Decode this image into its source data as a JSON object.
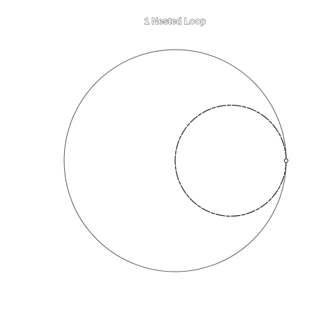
{
  "title": "1 Nested Loop",
  "colors": {
    "background": "#ffffff",
    "outer_loop": "#555555",
    "inner_loop": "#222222"
  },
  "shapes": {
    "outer_loop": "circle",
    "inner_loop": "circle",
    "contact_point": "open-circle-marker"
  }
}
